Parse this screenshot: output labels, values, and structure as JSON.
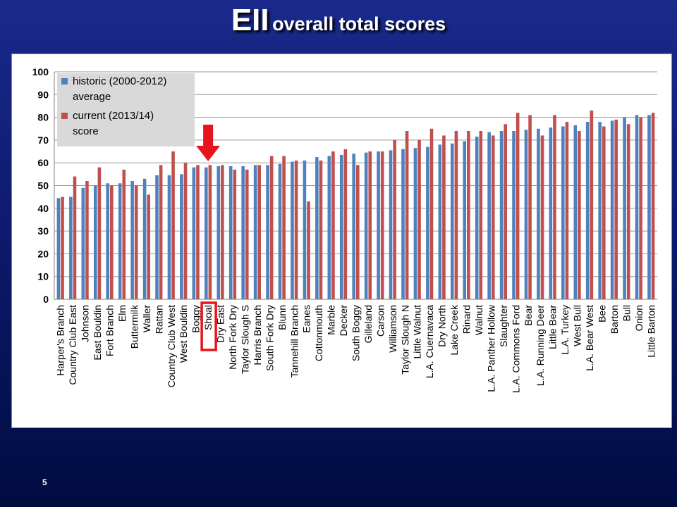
{
  "slide": {
    "title_main": "EII",
    "title_sub": "overall total scores",
    "page_number": "5"
  },
  "colors": {
    "historic": "#4f81bd",
    "current": "#c0504d",
    "highlight": "#e8141c"
  },
  "chart_data": {
    "type": "bar",
    "title": "",
    "xlabel": "",
    "ylabel": "",
    "ylim": [
      0,
      100
    ],
    "yticks": [
      0,
      10,
      20,
      30,
      40,
      50,
      60,
      70,
      80,
      90,
      100
    ],
    "grid": true,
    "legend_position": "top-left",
    "highlighted_category": "Shoal",
    "categories": [
      "Harper's Branch",
      "Country Club East",
      "Johnson",
      "East Bouldin",
      "Fort Branch",
      "Elm",
      "Buttermilk",
      "Waller",
      "Rattan",
      "Country Club West",
      "West Bouldin",
      "Boggy",
      "Shoal",
      "Dry East",
      "North Fork Dry",
      "Taylor Slough S",
      "Harris Branch",
      "South Fork Dry",
      "Blunn",
      "Tannehill Branch",
      "Eanes",
      "Cottonmouth",
      "Marble",
      "Decker",
      "South Boggy",
      "Gilleland",
      "Carson",
      "Williamson",
      "Taylor Slough N",
      "Little Walnut",
      "L.A. Cuernavaca",
      "Dry North",
      "Lake Creek",
      "Rinard",
      "Walnut",
      "L.A. Panther Hollow",
      "Slaughter",
      "L.A. Commons Ford",
      "Bear",
      "L.A. Running Deer",
      "Little Bear",
      "L.A. Turkey",
      "West Bull",
      "L.A. Bear West",
      "Bee",
      "Barton",
      "Bull",
      "Onion",
      "Little Barton"
    ],
    "series": [
      {
        "name": "historic (2000-2012) average",
        "legend_lines": [
          "historic (2000-2012)",
          "average"
        ],
        "values": [
          44.5,
          45,
          49,
          50,
          51,
          51,
          52,
          53,
          54.5,
          54.5,
          55,
          58,
          58,
          58.5,
          58.5,
          58.5,
          59,
          59,
          59.5,
          60.5,
          61,
          62.5,
          63,
          63.5,
          64,
          64.5,
          65,
          65.5,
          66,
          66.5,
          67,
          68,
          68.5,
          69.5,
          71.5,
          73.5,
          74,
          74,
          74.5,
          75,
          75.5,
          76,
          76.5,
          78,
          78,
          78.5,
          80,
          81,
          81
        ]
      },
      {
        "name": "current (2013/14) score",
        "legend_lines": [
          "current (2013/14)",
          "score"
        ],
        "values": [
          45,
          54,
          52,
          58,
          50,
          57,
          50,
          46,
          59,
          65,
          60,
          59,
          59,
          59,
          57,
          57,
          59,
          63,
          63,
          61,
          43,
          61,
          65,
          66,
          59,
          65,
          65,
          70,
          74,
          70,
          75,
          72,
          74,
          74,
          74,
          72,
          77,
          82,
          81,
          72,
          81,
          78,
          74,
          83,
          76,
          79,
          77,
          80,
          82
        ]
      }
    ]
  }
}
